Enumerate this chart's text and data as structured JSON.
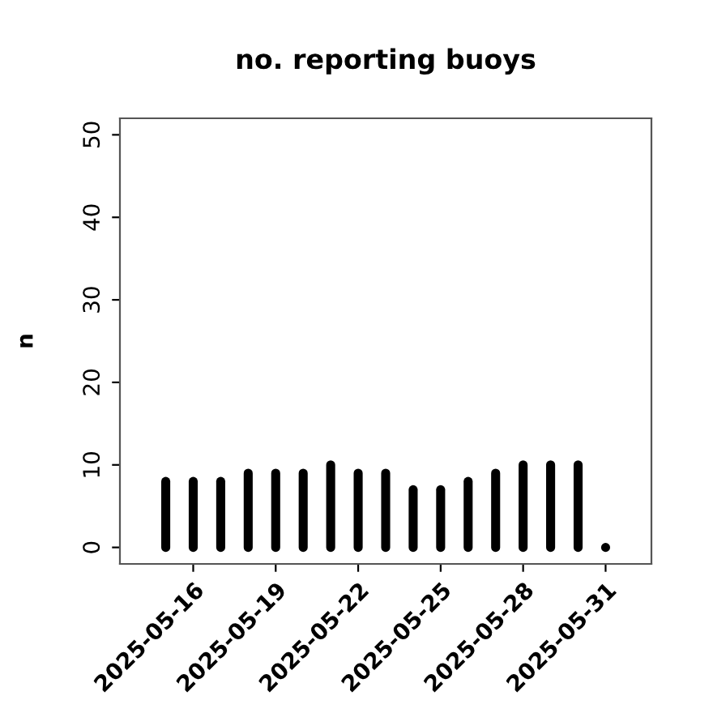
{
  "chart_data": {
    "type": "bar",
    "title": "no. reporting buoys",
    "ylabel": "n",
    "x": [
      "2025-05-15",
      "2025-05-16",
      "2025-05-17",
      "2025-05-18",
      "2025-05-19",
      "2025-05-20",
      "2025-05-21",
      "2025-05-22",
      "2025-05-23",
      "2025-05-24",
      "2025-05-25",
      "2025-05-26",
      "2025-05-27",
      "2025-05-28",
      "2025-05-29",
      "2025-05-30",
      "2025-05-31"
    ],
    "values": [
      8,
      8,
      8,
      9,
      9,
      9,
      10,
      9,
      9,
      7,
      7,
      8,
      9,
      10,
      10,
      10,
      0
    ],
    "color": "#000000",
    "xlim": [
      "2025-05-13T08:00",
      "2025-06-01T16:00"
    ],
    "xticks": [
      "2025-05-16",
      "2025-05-19",
      "2025-05-22",
      "2025-05-25",
      "2025-05-28",
      "2025-05-31"
    ],
    "ylim": [
      -2,
      52
    ],
    "yticks": [
      0,
      10,
      20,
      30,
      40,
      50
    ],
    "grid": false,
    "legend": false
  }
}
